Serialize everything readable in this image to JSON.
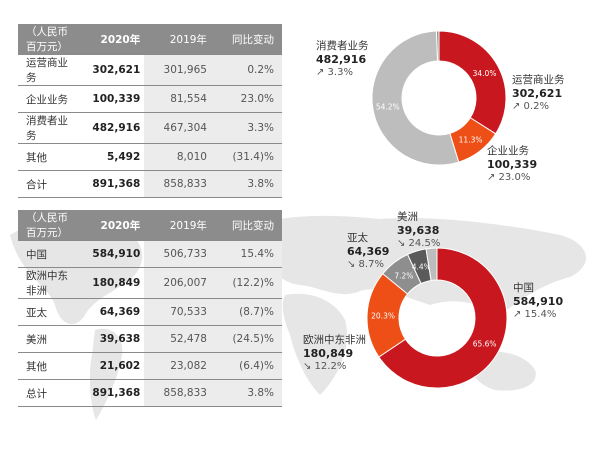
{
  "colors": {
    "red": "#c8171e",
    "orange": "#ee4f16",
    "gray": "#bdbdbd",
    "mid_gray": "#8e8e8e",
    "dark_gray": "#5a5a5a",
    "header": "#8c8c8c"
  },
  "table1": {
    "header": [
      "（人民币百万元）",
      "2020年",
      "2019年",
      "同比变动"
    ],
    "rows": [
      [
        "运营商业务",
        "302,621",
        "301,965",
        "0.2%"
      ],
      [
        "企业业务",
        "100,339",
        "81,554",
        "23.0%"
      ],
      [
        "消费者业务",
        "482,916",
        "467,304",
        "3.3%"
      ],
      [
        "其他",
        "5,492",
        "8,010",
        "(31.4)%"
      ],
      [
        "合计",
        "891,368",
        "858,833",
        "3.8%"
      ]
    ]
  },
  "table2": {
    "header": [
      "（人民币百万元）",
      "2020年",
      "2019年",
      "同比变动"
    ],
    "rows": [
      [
        "中国",
        "584,910",
        "506,733",
        "15.4%"
      ],
      [
        "欧洲中东非洲",
        "180,849",
        "206,007",
        "(12.2)%"
      ],
      [
        "亚太",
        "64,369",
        "70,533",
        "(8.7)%"
      ],
      [
        "美洲",
        "39,638",
        "52,478",
        "(24.5)%"
      ],
      [
        "其他",
        "21,602",
        "23,082",
        "(6.4)%"
      ],
      [
        "总计",
        "891,368",
        "858,833",
        "3.8%"
      ]
    ]
  },
  "chart_data": [
    {
      "type": "pie",
      "categories": [
        "运营商业务",
        "企业业务",
        "消费者业务",
        "其他"
      ],
      "values": [
        34.0,
        11.3,
        54.2,
        0.6
      ],
      "slice_labels": [
        "34.0%",
        "11.3%",
        "54.2%",
        ""
      ],
      "colors": [
        "#c8171e",
        "#ee4f16",
        "#bdbdbd",
        "#8e8e8e"
      ],
      "annotations": [
        {
          "name": "运营商业务",
          "value": "302,621",
          "change": "↗ 0.2%"
        },
        {
          "name": "企业业务",
          "value": "100,339",
          "change": "↗ 23.0%"
        },
        {
          "name": "消费者业务",
          "value": "482,916",
          "change": "↗ 3.3%"
        }
      ]
    },
    {
      "type": "pie",
      "categories": [
        "中国",
        "欧洲中东非洲",
        "亚太",
        "美洲",
        "其他"
      ],
      "values": [
        65.6,
        20.3,
        7.2,
        4.4,
        2.5
      ],
      "slice_labels": [
        "65.6%",
        "20.3%",
        "7.2%",
        "4.4%",
        ""
      ],
      "colors": [
        "#c8171e",
        "#ee4f16",
        "#8e8e8e",
        "#5a5a5a",
        "#bdbdbd"
      ],
      "annotations": [
        {
          "name": "中国",
          "value": "584,910",
          "change": "↗ 15.4%"
        },
        {
          "name": "欧洲中东非洲",
          "value": "180,849",
          "change": "↘ 12.2%"
        },
        {
          "name": "亚太",
          "value": "64,369",
          "change": "↘ 8.7%"
        },
        {
          "name": "美洲",
          "value": "39,638",
          "change": "↘ 24.5%"
        }
      ]
    }
  ]
}
